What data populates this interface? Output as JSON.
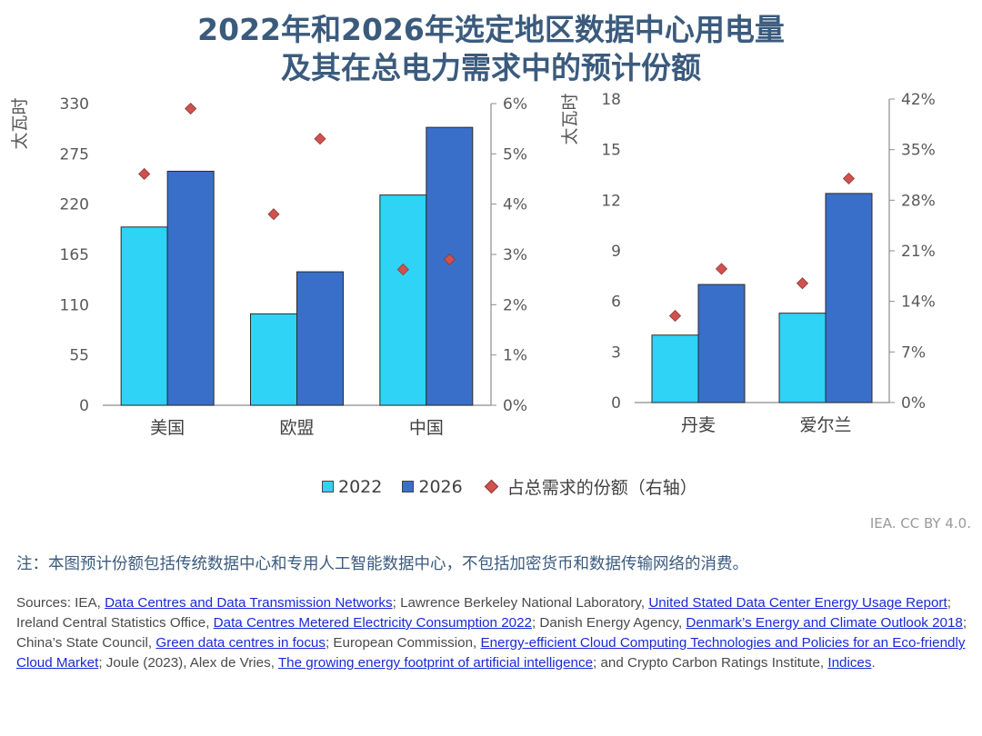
{
  "title_line1": "2022年和2026年选定地区数据中心用电量",
  "title_line2": "及其在总电力需求中的预计份额",
  "colors": {
    "y2022": "#2ed3f5",
    "y2026": "#3a6fc9",
    "share": "#d1514e",
    "title": "#3b5b7d"
  },
  "chart_data": [
    {
      "type": "bar",
      "categories": [
        "美国",
        "欧盟",
        "中国"
      ],
      "unit_label": "太瓦时",
      "ylim": [
        0,
        330
      ],
      "yticks": [
        0,
        55,
        110,
        165,
        220,
        275,
        330
      ],
      "y2lim": [
        0,
        0.06
      ],
      "y2ticks": [
        "0%",
        "1%",
        "2%",
        "3%",
        "4%",
        "5%",
        "6%"
      ],
      "series": [
        {
          "name": "2022",
          "values": [
            195,
            100,
            230
          ]
        },
        {
          "name": "2026",
          "values": [
            256,
            146,
            304
          ]
        }
      ],
      "share_points": {
        "name": "占总需求的份额（右轴）",
        "values_2022": [
          0.046,
          0.038,
          0.027
        ],
        "values_2026": [
          0.059,
          0.053,
          0.029
        ]
      }
    },
    {
      "type": "bar",
      "categories": [
        "丹麦",
        "爱尔兰"
      ],
      "unit_label": "太瓦时",
      "ylim": [
        0,
        18
      ],
      "yticks": [
        0,
        3,
        6,
        9,
        12,
        15,
        18
      ],
      "y2lim": [
        0,
        0.42
      ],
      "y2ticks": [
        "0%",
        "7%",
        "14%",
        "21%",
        "28%",
        "35%",
        "42%"
      ],
      "series": [
        {
          "name": "2022",
          "values": [
            4.0,
            5.3
          ]
        },
        {
          "name": "2026",
          "values": [
            7.0,
            12.4
          ]
        }
      ],
      "share_points": {
        "name": "占总需求的份额（右轴）",
        "values_2022": [
          0.12,
          0.165
        ],
        "values_2026": [
          0.185,
          0.31
        ]
      }
    }
  ],
  "legend": {
    "item_2022": "2022",
    "item_2026": "2026",
    "item_share": "占总需求的份额（右轴）"
  },
  "credit": "IEA. CC BY 4.0.",
  "note": "注：本图预计份额包括传统数据中心和专用人工智能数据中心，不包括加密货币和数据传输网络的消费。",
  "sources": {
    "s0": "Sources: IEA, ",
    "l1": "Data Centres and Data Transmission Networks",
    "s1": "; Lawrence Berkeley National Laboratory, ",
    "l2": "United Stated Data Center Energy Usage Report",
    "s2": "; Ireland Central Statistics Office, ",
    "l3": "Data Centres Metered Electricity Consumption 2022",
    "s3": "; Danish Energy Agency, ",
    "l4": "Denmark’s Energy and Climate Outlook 2018",
    "s4": "; China’s State Council, ",
    "l5": "Green data centres in focus",
    "s5": "; European Commission, ",
    "l6": "Energy-efficient Cloud Computing Technologies and Policies for an Eco-friendly Cloud Market",
    "s6": "; Joule (2023), Alex de Vries, ",
    "l7": "The growing energy footprint of artificial intelligence",
    "s7": "; and Crypto Carbon Ratings Institute, ",
    "l8": "Indices",
    "s8": "."
  }
}
